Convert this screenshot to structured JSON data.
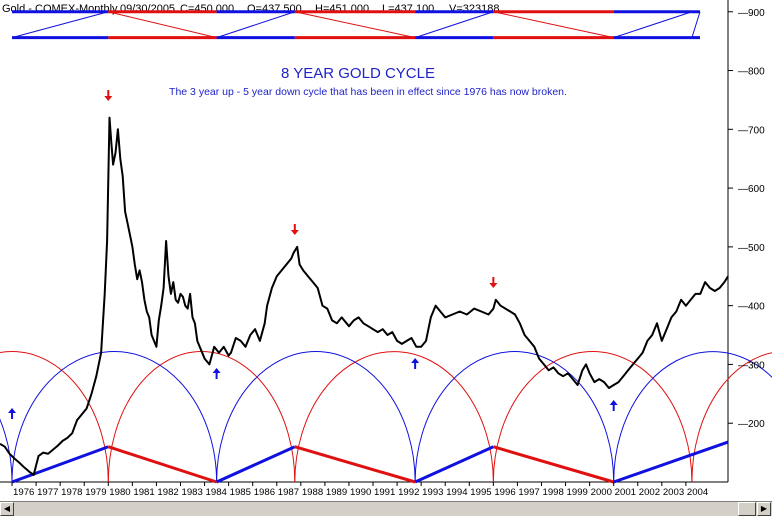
{
  "header": {
    "symbol": "Gold - COMEX-Monthly",
    "date": "09/30/2005",
    "close": "C=450.000",
    "open": "O=437.500",
    "high": "H=451.000",
    "low": "L=437.100",
    "volume": "V=323188"
  },
  "chart_data": {
    "type": "line",
    "title": "8 YEAR GOLD CYCLE",
    "subtitle": "The 3 year up - 5 year down cycle that has been in effect since 1976 has now broken.",
    "xlabel": "",
    "ylabel": "",
    "xlim": [
      1975.5,
      2005.75
    ],
    "ylim": [
      100,
      920
    ],
    "y_ticks": [
      200,
      300,
      400,
      500,
      600,
      700,
      800,
      900
    ],
    "x_ticks": [
      "1976",
      "1977",
      "1978",
      "1979",
      "1980",
      "1981",
      "1982",
      "1983",
      "1984",
      "1985",
      "1986",
      "1987",
      "1988",
      "1989",
      "1990",
      "1991",
      "1992",
      "1993",
      "1994",
      "1995",
      "1996",
      "1997",
      "1998",
      "1999",
      "2000",
      "2001",
      "2002",
      "2003",
      "2004"
    ],
    "grid": false,
    "legend": "none",
    "series": [
      {
        "color": "#000000",
        "x": [
          1975.5,
          1975.7,
          1975.9,
          1976.1,
          1976.3,
          1976.5,
          1976.7,
          1976.9,
          1977.1,
          1977.3,
          1977.5,
          1977.7,
          1977.9,
          1978.1,
          1978.3,
          1978.5,
          1978.7,
          1978.9,
          1979.1,
          1979.3,
          1979.5,
          1979.7,
          1979.85,
          1979.95,
          1980.05,
          1980.12,
          1980.2,
          1980.3,
          1980.4,
          1980.5,
          1980.6,
          1980.7,
          1980.8,
          1980.9,
          1981.0,
          1981.1,
          1981.2,
          1981.3,
          1981.4,
          1981.5,
          1981.6,
          1981.7,
          1981.8,
          1981.9,
          1982.0,
          1982.1,
          1982.2,
          1982.3,
          1982.4,
          1982.5,
          1982.6,
          1982.7,
          1982.8,
          1982.9,
          1983.0,
          1983.1,
          1983.2,
          1983.3,
          1983.4,
          1983.5,
          1983.6,
          1983.7,
          1983.8,
          1983.9,
          1984.0,
          1984.2,
          1984.4,
          1984.6,
          1984.8,
          1985.0,
          1985.1,
          1985.3,
          1985.5,
          1985.7,
          1985.9,
          1986.1,
          1986.3,
          1986.5,
          1986.6,
          1986.8,
          1987.0,
          1987.2,
          1987.4,
          1987.6,
          1987.7,
          1987.85,
          1987.95,
          1988.1,
          1988.3,
          1988.5,
          1988.7,
          1988.9,
          1989.1,
          1989.3,
          1989.5,
          1989.7,
          1989.9,
          1990.0,
          1990.2,
          1990.4,
          1990.6,
          1990.8,
          1991.0,
          1991.2,
          1991.4,
          1991.6,
          1991.8,
          1992.0,
          1992.2,
          1992.4,
          1992.6,
          1992.8,
          1993.0,
          1993.2,
          1993.4,
          1993.6,
          1993.8,
          1994.0,
          1994.3,
          1994.6,
          1994.9,
          1995.2,
          1995.5,
          1995.8,
          1996.0,
          1996.1,
          1996.3,
          1996.5,
          1996.7,
          1996.9,
          1997.1,
          1997.3,
          1997.5,
          1997.7,
          1997.9,
          1998.1,
          1998.3,
          1998.5,
          1998.7,
          1998.9,
          1999.1,
          1999.3,
          1999.5,
          1999.7,
          1999.85,
          2000.0,
          2000.2,
          2000.4,
          2000.6,
          2000.8,
          2001.0,
          2001.2,
          2001.4,
          2001.6,
          2001.8,
          2002.0,
          2002.2,
          2002.4,
          2002.6,
          2002.8,
          2003.0,
          2003.2,
          2003.4,
          2003.6,
          2003.8,
          2004.0,
          2004.2,
          2004.4,
          2004.6,
          2004.8,
          2005.0,
          2005.2,
          2005.4,
          2005.6,
          2005.75
        ],
        "y": [
          165,
          160,
          148,
          140,
          133,
          125,
          118,
          112,
          144,
          150,
          148,
          155,
          162,
          170,
          175,
          183,
          205,
          215,
          225,
          250,
          280,
          320,
          420,
          510,
          720,
          680,
          640,
          660,
          700,
          650,
          620,
          560,
          540,
          520,
          500,
          470,
          445,
          460,
          440,
          410,
          390,
          380,
          350,
          340,
          330,
          375,
          400,
          430,
          510,
          450,
          420,
          440,
          410,
          405,
          420,
          415,
          400,
          395,
          420,
          380,
          370,
          340,
          330,
          320,
          310,
          300,
          330,
          320,
          330,
          315,
          320,
          345,
          340,
          330,
          350,
          360,
          340,
          370,
          400,
          430,
          450,
          460,
          470,
          480,
          490,
          500,
          470,
          460,
          450,
          440,
          430,
          400,
          395,
          375,
          370,
          380,
          370,
          365,
          375,
          380,
          370,
          365,
          360,
          355,
          360,
          350,
          355,
          340,
          335,
          340,
          345,
          330,
          330,
          340,
          380,
          400,
          390,
          380,
          385,
          390,
          385,
          395,
          390,
          385,
          395,
          410,
          400,
          395,
          390,
          385,
          370,
          350,
          340,
          330,
          310,
          300,
          290,
          295,
          285,
          280,
          285,
          275,
          265,
          290,
          300,
          285,
          270,
          275,
          270,
          260,
          265,
          270,
          280,
          290,
          300,
          310,
          320,
          340,
          350,
          370,
          340,
          360,
          380,
          390,
          410,
          400,
          410,
          420,
          420,
          440,
          430,
          425,
          430,
          440,
          450
        ]
      }
    ],
    "annotations": {
      "down_arrows_x": [
        1980.0,
        1987.75,
        1996.0
      ],
      "up_arrows_x": [
        1976.0,
        1984.5,
        1992.75,
        2001.0
      ],
      "cycle_lows_x": [
        1976.0,
        1984.5,
        1992.75,
        2001.0
      ],
      "cycle_peaks_x": [
        1980.0,
        1987.75,
        1996.0,
        2004.25
      ]
    }
  },
  "scrollbar": {
    "left_icon": "arrow-left-icon",
    "right_icon": "arrow-right-icon"
  }
}
